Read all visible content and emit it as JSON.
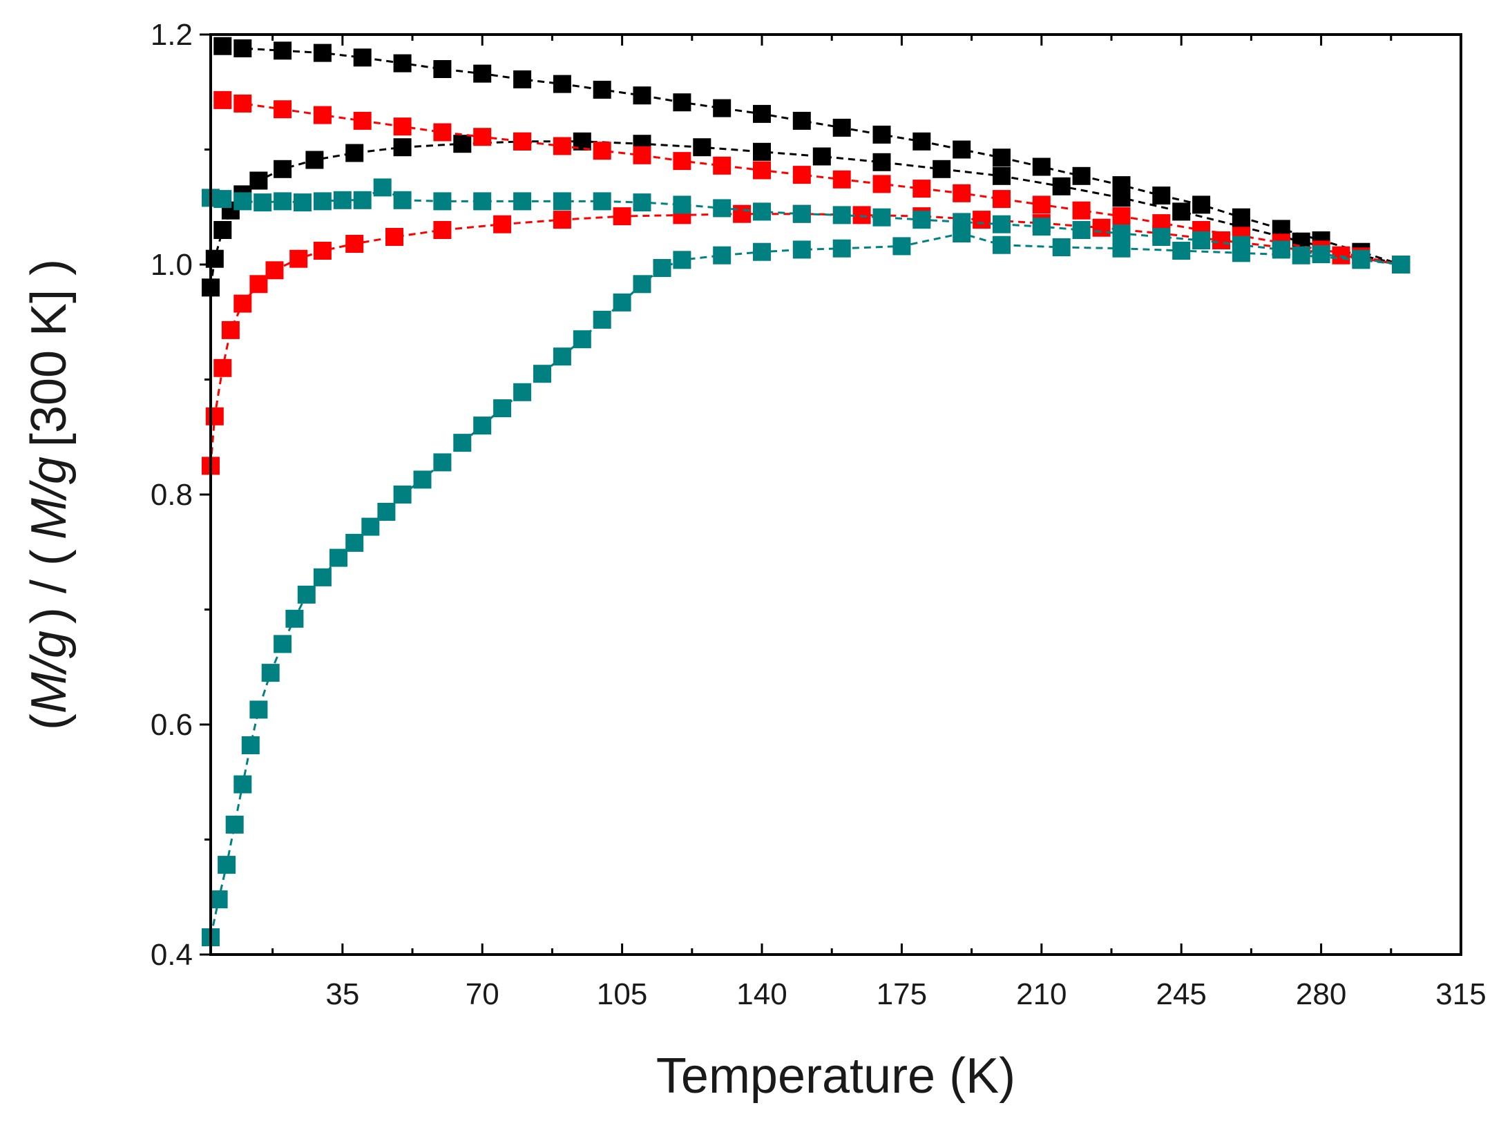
{
  "chart_data": {
    "type": "scatter",
    "title": "",
    "xlabel": "Temperature (K)",
    "ylabel": "(M/g) / ( M/g [300 K] )",
    "ylabel_parts": {
      "p1": "(",
      "p2": "M/g",
      "p3": ") / (",
      "p4": "M/g",
      "p5": "[300 K] )"
    },
    "xlim": [
      2,
      315
    ],
    "ylim": [
      0.4,
      1.2
    ],
    "x_ticks": [
      35,
      70,
      105,
      140,
      175,
      210,
      245,
      280,
      315
    ],
    "y_ticks": [
      0.4,
      0.6,
      0.8,
      1.0,
      1.2
    ],
    "x_tick_labels": [
      "35",
      "70",
      "105",
      "140",
      "175",
      "210",
      "245",
      "280",
      "315"
    ],
    "y_tick_labels": [
      "0.4",
      "0.6",
      "0.8",
      "1.0",
      "1.2"
    ],
    "series": [
      {
        "name": "black-upper",
        "color": "#000000",
        "x": [
          5,
          10,
          20,
          30,
          40,
          50,
          60,
          70,
          80,
          90,
          100,
          110,
          120,
          130,
          140,
          150,
          160,
          170,
          180,
          190,
          200,
          210,
          220,
          230,
          240,
          250,
          260,
          270,
          280,
          290,
          300
        ],
        "y": [
          1.19,
          1.188,
          1.186,
          1.184,
          1.18,
          1.175,
          1.17,
          1.166,
          1.161,
          1.157,
          1.152,
          1.147,
          1.141,
          1.136,
          1.131,
          1.125,
          1.119,
          1.113,
          1.107,
          1.1,
          1.093,
          1.085,
          1.077,
          1.069,
          1.06,
          1.052,
          1.041,
          1.031,
          1.021,
          1.011,
          1.0
        ]
      },
      {
        "name": "black-lower",
        "color": "#000000",
        "x": [
          2,
          3,
          5,
          7,
          10,
          14,
          20,
          28,
          38,
          50,
          65,
          80,
          95,
          110,
          125,
          140,
          155,
          170,
          185,
          200,
          215,
          230,
          245,
          260,
          275,
          290,
          300
        ],
        "y": [
          0.98,
          1.005,
          1.03,
          1.047,
          1.061,
          1.073,
          1.083,
          1.091,
          1.097,
          1.102,
          1.105,
          1.107,
          1.107,
          1.105,
          1.102,
          1.098,
          1.094,
          1.089,
          1.083,
          1.077,
          1.068,
          1.058,
          1.046,
          1.033,
          1.02,
          1.008,
          1.0
        ]
      },
      {
        "name": "red-upper",
        "color": "#ff0000",
        "x": [
          5,
          10,
          20,
          30,
          40,
          50,
          60,
          70,
          80,
          90,
          100,
          110,
          120,
          130,
          140,
          150,
          160,
          170,
          180,
          190,
          200,
          210,
          220,
          230,
          240,
          250,
          260,
          270,
          280,
          290,
          300
        ],
        "y": [
          1.143,
          1.14,
          1.135,
          1.13,
          1.125,
          1.12,
          1.115,
          1.111,
          1.107,
          1.103,
          1.099,
          1.095,
          1.09,
          1.086,
          1.082,
          1.078,
          1.074,
          1.07,
          1.066,
          1.062,
          1.057,
          1.052,
          1.047,
          1.042,
          1.036,
          1.03,
          1.025,
          1.019,
          1.013,
          1.007,
          1.0
        ]
      },
      {
        "name": "red-lower",
        "color": "#ff0000",
        "x": [
          2,
          3,
          5,
          7,
          10,
          14,
          18,
          24,
          30,
          38,
          48,
          60,
          75,
          90,
          105,
          120,
          135,
          150,
          165,
          180,
          195,
          210,
          225,
          240,
          255,
          270,
          285,
          300
        ],
        "y": [
          0.825,
          0.868,
          0.91,
          0.943,
          0.966,
          0.983,
          0.995,
          1.005,
          1.012,
          1.018,
          1.024,
          1.03,
          1.035,
          1.039,
          1.042,
          1.043,
          1.044,
          1.044,
          1.043,
          1.042,
          1.039,
          1.036,
          1.032,
          1.027,
          1.021,
          1.015,
          1.008,
          1.0
        ]
      },
      {
        "name": "teal-upper",
        "color": "#008080",
        "x": [
          2,
          5,
          10,
          15,
          20,
          25,
          30,
          35,
          40,
          45,
          50,
          60,
          70,
          80,
          90,
          100,
          110,
          120,
          130,
          140,
          150,
          160,
          170,
          180,
          190,
          200,
          210,
          220,
          230,
          240,
          250,
          260,
          270,
          280,
          290,
          300
        ],
        "y": [
          1.058,
          1.057,
          1.055,
          1.054,
          1.055,
          1.054,
          1.055,
          1.056,
          1.056,
          1.067,
          1.056,
          1.055,
          1.055,
          1.055,
          1.055,
          1.055,
          1.054,
          1.052,
          1.049,
          1.046,
          1.044,
          1.043,
          1.041,
          1.039,
          1.037,
          1.035,
          1.033,
          1.03,
          1.027,
          1.024,
          1.021,
          1.017,
          1.013,
          1.009,
          1.005,
          1.0
        ]
      },
      {
        "name": "teal-lower",
        "color": "#008080",
        "x": [
          2,
          4,
          6,
          8,
          10,
          12,
          14,
          17,
          20,
          23,
          26,
          30,
          34,
          38,
          42,
          46,
          50,
          55,
          60,
          65,
          70,
          75,
          80,
          85,
          90,
          95,
          100,
          105,
          110,
          115,
          120,
          130,
          140,
          150,
          160,
          175,
          190,
          200,
          215,
          230,
          245,
          260,
          275,
          290,
          300
        ],
        "y": [
          0.415,
          0.448,
          0.478,
          0.513,
          0.548,
          0.582,
          0.613,
          0.645,
          0.67,
          0.692,
          0.713,
          0.728,
          0.745,
          0.758,
          0.772,
          0.785,
          0.8,
          0.813,
          0.828,
          0.845,
          0.86,
          0.875,
          0.889,
          0.905,
          0.92,
          0.935,
          0.952,
          0.967,
          0.983,
          0.997,
          1.004,
          1.008,
          1.011,
          1.013,
          1.014,
          1.016,
          1.027,
          1.017,
          1.015,
          1.014,
          1.012,
          1.01,
          1.008,
          1.004,
          1.0
        ]
      }
    ]
  }
}
